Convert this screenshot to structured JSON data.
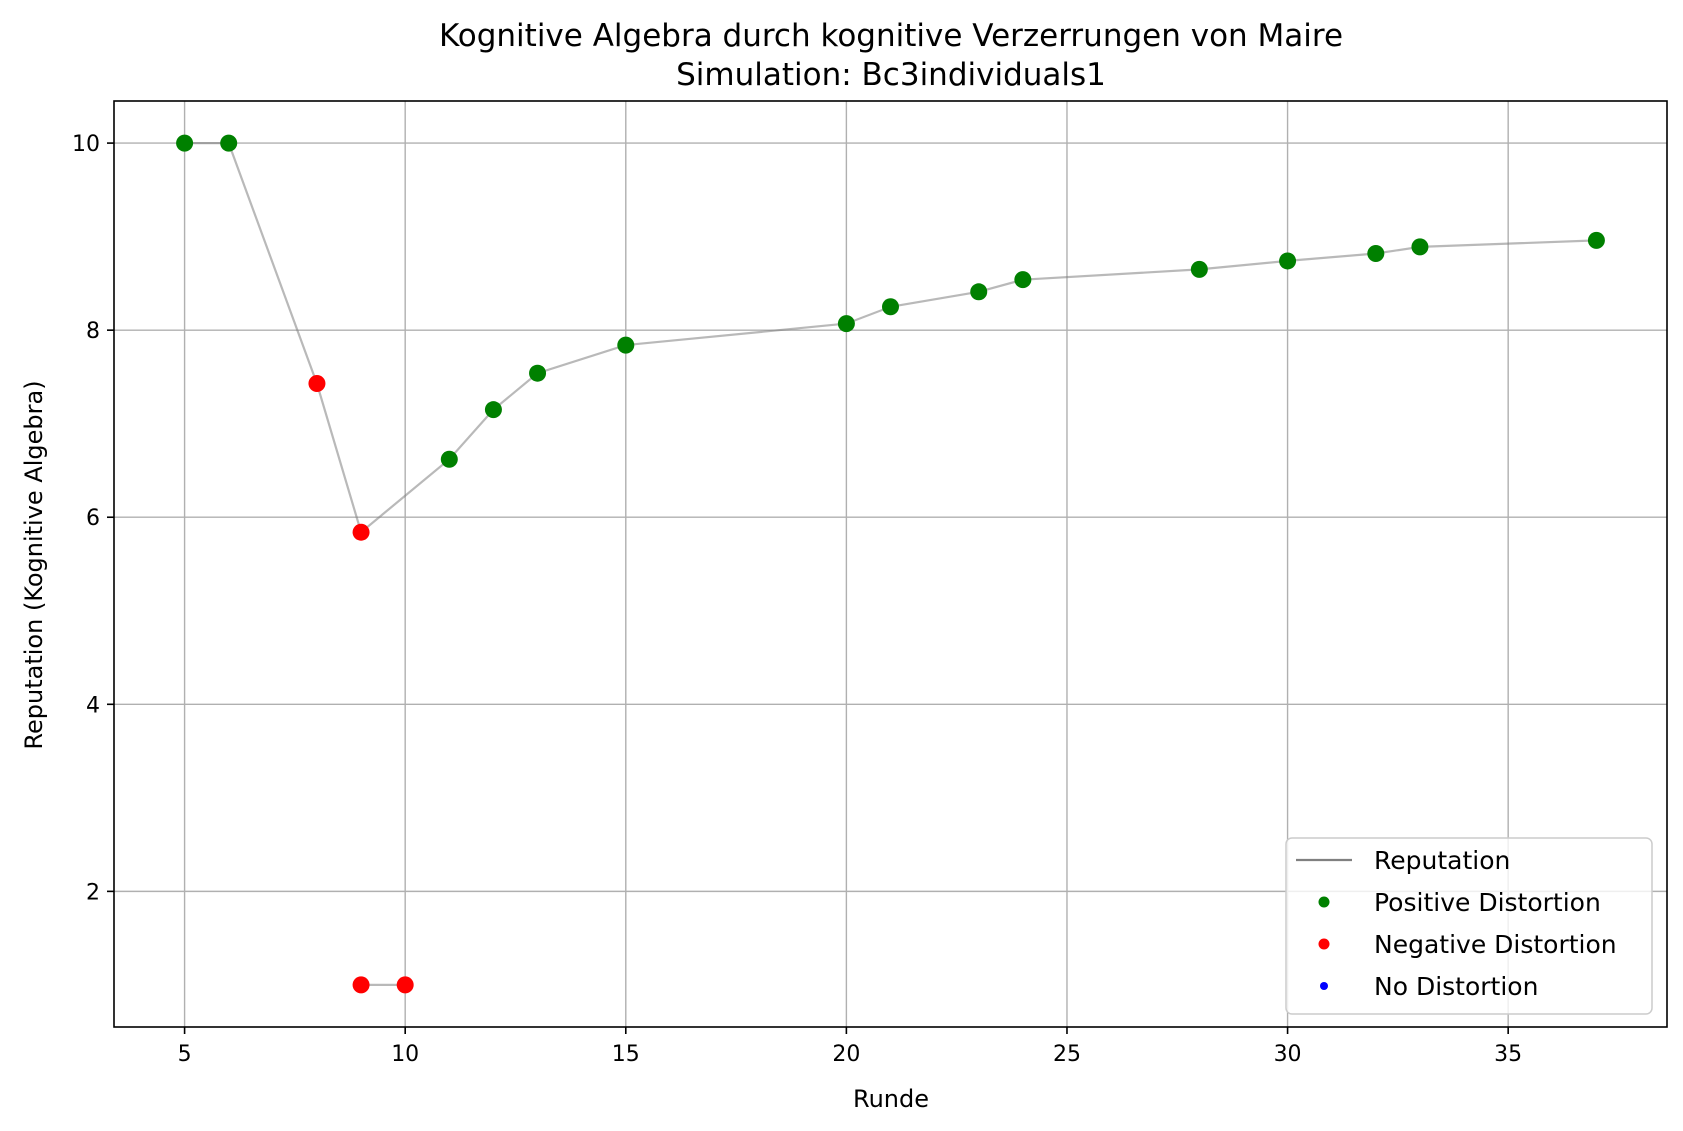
{
  "chart_data": {
    "type": "scatter",
    "title": "Kognitive Algebra durch kognitive Verzerrungen von Maire",
    "subtitle": "Simulation: Bc3individuals1",
    "xlabel": "Runde",
    "ylabel": "Reputation (Kognitive Algebra)",
    "xlim": [
      3.4,
      38.6
    ],
    "ylim": [
      0.55,
      10.45
    ],
    "xticks": [
      5,
      10,
      15,
      20,
      25,
      30,
      35
    ],
    "yticks": [
      2,
      4,
      6,
      8,
      10
    ],
    "grid": true,
    "legend_position": "lower-right",
    "line": {
      "name": "Reputation",
      "color": "#808080",
      "points": [
        [
          5,
          10
        ],
        [
          6,
          10
        ],
        [
          8,
          7.43
        ],
        [
          9,
          5.84
        ],
        [
          11,
          6.62
        ],
        [
          12,
          7.15
        ],
        [
          13,
          7.54
        ],
        [
          15,
          7.84
        ],
        [
          20,
          8.07
        ],
        [
          21,
          8.25
        ],
        [
          23,
          8.41
        ],
        [
          24,
          8.54
        ],
        [
          28,
          8.65
        ],
        [
          30,
          8.74
        ],
        [
          32,
          8.82
        ],
        [
          33,
          8.89
        ],
        [
          37,
          8.96
        ]
      ]
    },
    "line2": {
      "name": "",
      "color": "#808080",
      "points": [
        [
          9,
          1.0
        ],
        [
          10,
          1.0
        ]
      ]
    },
    "series": [
      {
        "name": "Positive Distortion",
        "color": "#008000",
        "points": [
          [
            5,
            10
          ],
          [
            6,
            10
          ],
          [
            11,
            6.62
          ],
          [
            12,
            7.15
          ],
          [
            13,
            7.54
          ],
          [
            15,
            7.84
          ],
          [
            20,
            8.07
          ],
          [
            21,
            8.25
          ],
          [
            23,
            8.41
          ],
          [
            24,
            8.54
          ],
          [
            28,
            8.65
          ],
          [
            30,
            8.74
          ],
          [
            32,
            8.82
          ],
          [
            33,
            8.89
          ],
          [
            37,
            8.96
          ]
        ]
      },
      {
        "name": "Negative Distortion",
        "color": "#ff0000",
        "points": [
          [
            8,
            7.43
          ],
          [
            9,
            5.84
          ],
          [
            9,
            1.0
          ],
          [
            10,
            1.0
          ]
        ]
      },
      {
        "name": "No Distortion",
        "color": "#0000ff",
        "points": []
      }
    ]
  }
}
